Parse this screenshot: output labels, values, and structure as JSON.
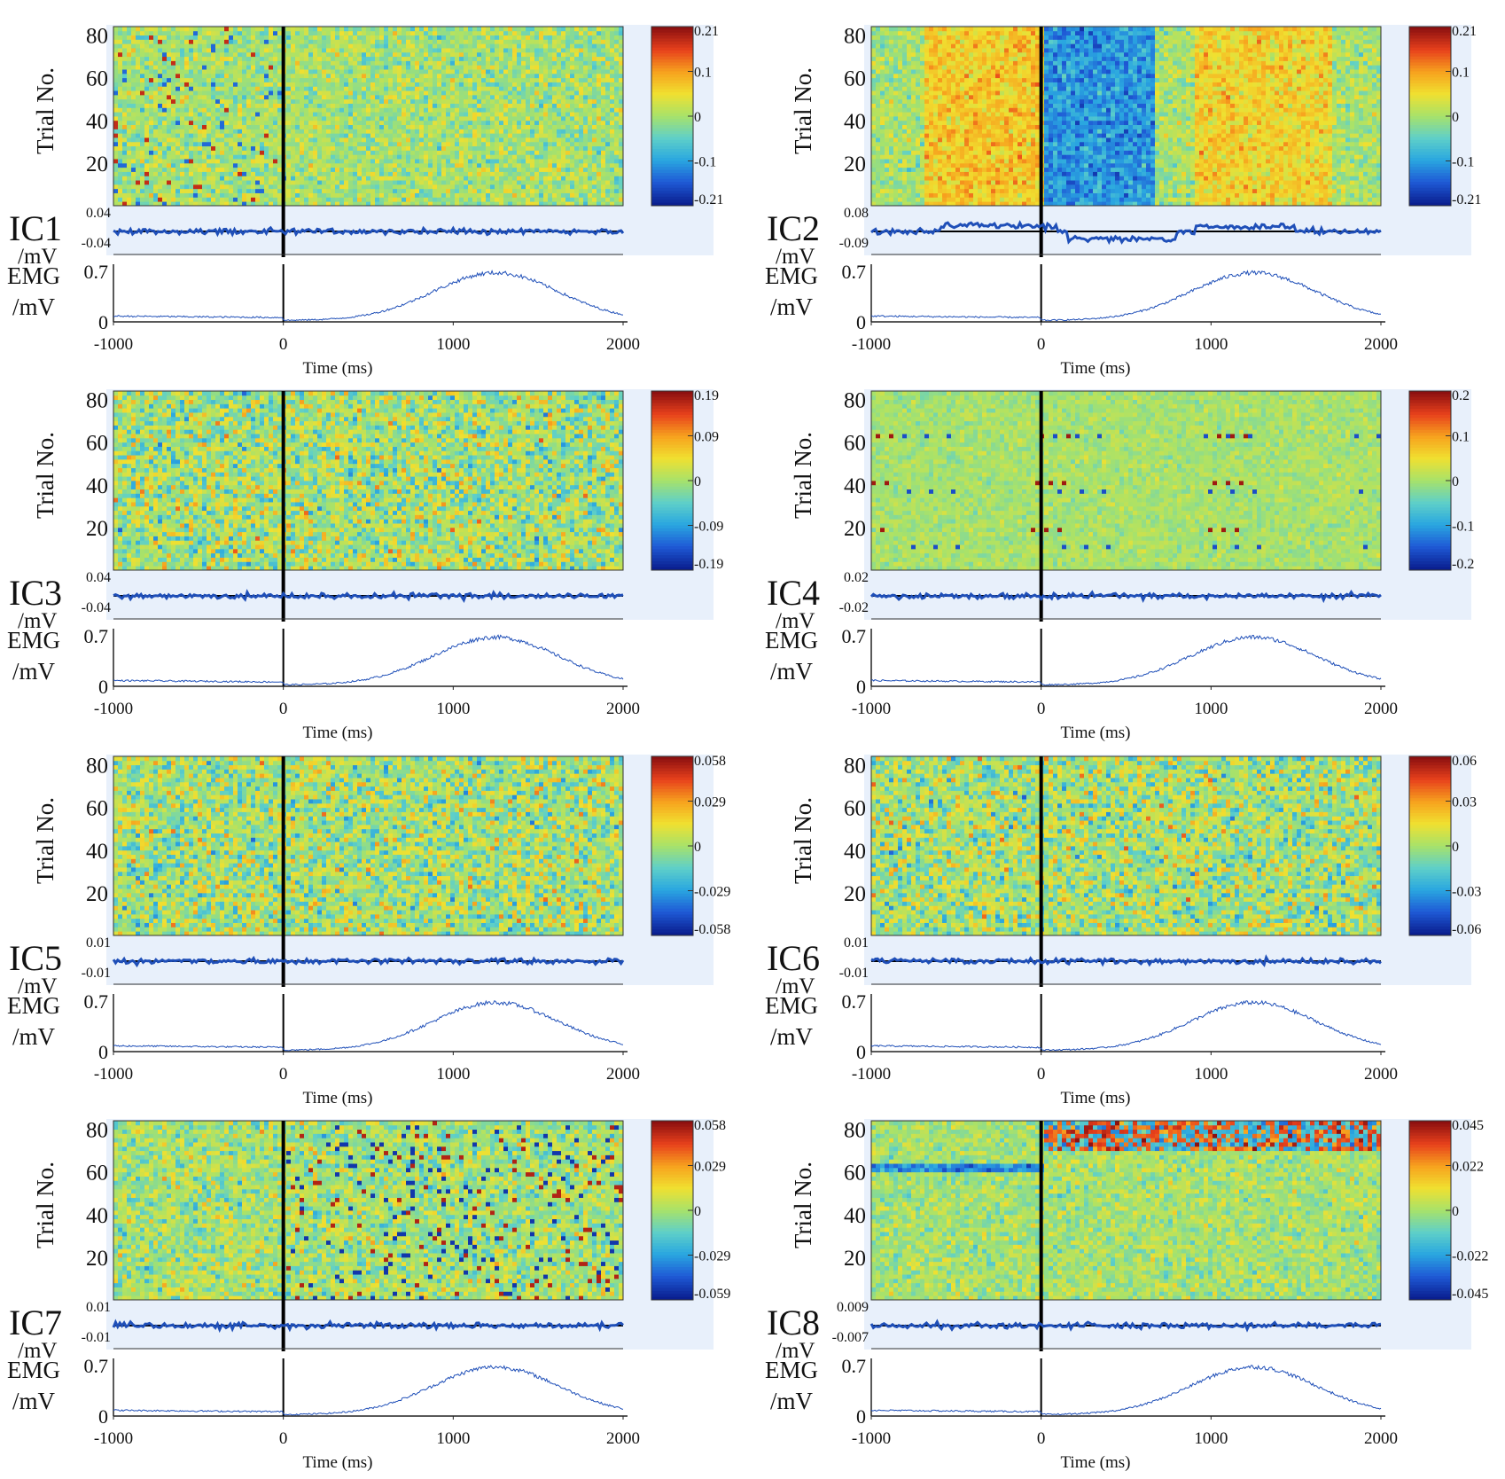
{
  "figure": {
    "ylabel_trials": "Trial No.",
    "emg_label_line1": "EMG",
    "emg_label_line2": "/mV",
    "ic_unit": "/mV",
    "xlabel": "Time (ms)",
    "x_ticks": [
      "-1000",
      "0",
      "1000",
      "2000"
    ],
    "y_ticks_trials": [
      "20",
      "40",
      "60",
      "80"
    ],
    "emg_ticks": [
      "0",
      "0.7"
    ]
  },
  "colors": {
    "colormap": [
      "#0a1f8f",
      "#1f5ad6",
      "#2aa7e0",
      "#5fd0c8",
      "#a8e26a",
      "#f0e030",
      "#f7a21e",
      "#e8411c",
      "#8c1010"
    ],
    "trace": "#1f4fb8",
    "panel_background": "#e8f0fb"
  },
  "chart_data": [
    {
      "type": "heatmap",
      "title": "IC1",
      "xlabel": "Time (ms)",
      "ylabel": "Trial No.",
      "xlim": [
        -1000,
        2000
      ],
      "ylim": [
        0,
        84
      ],
      "colorbar_ticks": [
        "0.21",
        "0.1",
        "0",
        "-0.1",
        "-0.21"
      ],
      "colorbar_range": [
        -0.21,
        0.21
      ],
      "avg_ticks": [
        "0.04",
        "-0.04"
      ],
      "pattern": "weak",
      "emg": {
        "y_ticks": [
          "0",
          "0.7"
        ],
        "peak_value": 0.7,
        "peak_time": 1250
      }
    },
    {
      "type": "heatmap",
      "title": "IC2",
      "xlabel": "Time (ms)",
      "ylabel": "Trial No.",
      "xlim": [
        -1000,
        2000
      ],
      "ylim": [
        0,
        84
      ],
      "colorbar_ticks": [
        "0.21",
        "0.1",
        "0",
        "-0.1",
        "-0.21"
      ],
      "colorbar_range": [
        -0.21,
        0.21
      ],
      "avg_ticks": [
        "0.08",
        "-0.09"
      ],
      "pattern": "structured",
      "emg": {
        "y_ticks": [
          "0",
          "0.7"
        ],
        "peak_value": 0.7,
        "peak_time": 1250
      }
    },
    {
      "type": "heatmap",
      "title": "IC3",
      "xlabel": "Time (ms)",
      "ylabel": "Trial No.",
      "xlim": [
        -1000,
        2000
      ],
      "ylim": [
        0,
        84
      ],
      "colorbar_ticks": [
        "0.19",
        "0.09",
        "0",
        "-0.09",
        "-0.19"
      ],
      "colorbar_range": [
        -0.19,
        0.19
      ],
      "avg_ticks": [
        "0.04",
        "-0.04"
      ],
      "pattern": "noise",
      "emg": {
        "y_ticks": [
          "0",
          "0.7"
        ],
        "peak_value": 0.7,
        "peak_time": 1250
      }
    },
    {
      "type": "heatmap",
      "title": "IC4",
      "xlabel": "Time (ms)",
      "ylabel": "Trial No.",
      "xlim": [
        -1000,
        2000
      ],
      "ylim": [
        0,
        84
      ],
      "colorbar_ticks": [
        "0.2",
        "0.1",
        "0",
        "-0.1",
        "-0.2"
      ],
      "colorbar_range": [
        -0.2,
        0.2
      ],
      "avg_ticks": [
        "0.02",
        "-0.02"
      ],
      "pattern": "artifact",
      "emg": {
        "y_ticks": [
          "0",
          "0.7"
        ],
        "peak_value": 0.7,
        "peak_time": 1250
      }
    },
    {
      "type": "heatmap",
      "title": "IC5",
      "xlabel": "Time (ms)",
      "ylabel": "Trial No.",
      "xlim": [
        -1000,
        2000
      ],
      "ylim": [
        0,
        84
      ],
      "colorbar_ticks": [
        "0.058",
        "0.029",
        "0",
        "-0.029",
        "-0.058"
      ],
      "colorbar_range": [
        -0.058,
        0.058
      ],
      "avg_ticks": [
        "0.01",
        "-0.01"
      ],
      "pattern": "noise",
      "emg": {
        "y_ticks": [
          "0",
          "0.7"
        ],
        "peak_value": 0.7,
        "peak_time": 1250
      }
    },
    {
      "type": "heatmap",
      "title": "IC6",
      "xlabel": "Time (ms)",
      "ylabel": "Trial No.",
      "xlim": [
        -1000,
        2000
      ],
      "ylim": [
        0,
        84
      ],
      "colorbar_ticks": [
        "0.06",
        "0.03",
        "0",
        "-0.03",
        "-0.06"
      ],
      "colorbar_range": [
        -0.06,
        0.06
      ],
      "avg_ticks": [
        "0.01",
        "-0.01"
      ],
      "pattern": "noise",
      "emg": {
        "y_ticks": [
          "0",
          "0.7"
        ],
        "peak_value": 0.7,
        "peak_time": 1250
      }
    },
    {
      "type": "heatmap",
      "title": "IC7",
      "xlabel": "Time (ms)",
      "ylabel": "Trial No.",
      "xlim": [
        -1000,
        2000
      ],
      "ylim": [
        0,
        84
      ],
      "colorbar_ticks": [
        "0.058",
        "0.029",
        "0",
        "-0.029",
        "-0.059"
      ],
      "colorbar_range": [
        -0.059,
        0.058
      ],
      "avg_ticks": [
        "0.01",
        "-0.01"
      ],
      "pattern": "speckle",
      "emg": {
        "y_ticks": [
          "0",
          "0.7"
        ],
        "peak_value": 0.7,
        "peak_time": 1250
      }
    },
    {
      "type": "heatmap",
      "title": "IC8",
      "xlabel": "Time (ms)",
      "ylabel": "Trial No.",
      "xlim": [
        -1000,
        2000
      ],
      "ylim": [
        0,
        84
      ],
      "colorbar_ticks": [
        "0.045",
        "0.022",
        "0",
        "-0.022",
        "-0.045"
      ],
      "colorbar_range": [
        -0.045,
        0.045
      ],
      "avg_ticks": [
        "0.009",
        "-0.007"
      ],
      "pattern": "top",
      "emg": {
        "y_ticks": [
          "0",
          "0.7"
        ],
        "peak_value": 0.7,
        "peak_time": 1250
      }
    }
  ]
}
